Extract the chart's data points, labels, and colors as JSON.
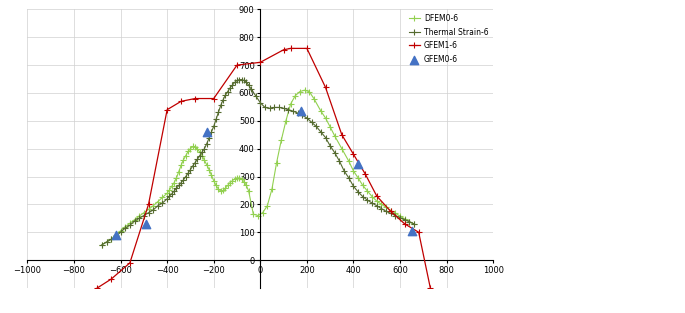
{
  "xlim": [
    -1000,
    1000
  ],
  "ylim": [
    -100,
    900
  ],
  "xticks": [
    -1000,
    -800,
    -600,
    -400,
    -200,
    0,
    200,
    400,
    600,
    800,
    1000
  ],
  "yticks": [
    0,
    100,
    200,
    300,
    400,
    500,
    600,
    700,
    800,
    900
  ],
  "series": {
    "thermal_strain": {
      "label": "Thermal Strain-6",
      "color": "#556b2f",
      "linewidth": 0.8,
      "marker": "+",
      "markersize": 4,
      "x": [
        -680,
        -660,
        -640,
        -620,
        -600,
        -580,
        -560,
        -540,
        -520,
        -500,
        -480,
        -460,
        -440,
        -420,
        -400,
        -390,
        -380,
        -370,
        -360,
        -350,
        -340,
        -330,
        -320,
        -310,
        -300,
        -290,
        -280,
        -270,
        -260,
        -250,
        -240,
        -230,
        -220,
        -210,
        -200,
        -190,
        -180,
        -170,
        -160,
        -150,
        -140,
        -130,
        -120,
        -110,
        -100,
        -90,
        -80,
        -70,
        -60,
        -50,
        -40,
        -20,
        0,
        20,
        40,
        60,
        80,
        100,
        120,
        140,
        160,
        180,
        200,
        220,
        240,
        260,
        280,
        300,
        320,
        340,
        360,
        380,
        400,
        420,
        440,
        460,
        480,
        500,
        520,
        540,
        560,
        580,
        600,
        620,
        640,
        660
      ],
      "y": [
        55,
        65,
        75,
        85,
        100,
        115,
        125,
        140,
        150,
        160,
        170,
        180,
        195,
        205,
        220,
        230,
        238,
        248,
        258,
        268,
        278,
        288,
        300,
        312,
        325,
        338,
        350,
        362,
        375,
        388,
        400,
        418,
        438,
        460,
        480,
        505,
        530,
        555,
        575,
        592,
        605,
        618,
        628,
        638,
        645,
        648,
        648,
        645,
        638,
        628,
        615,
        590,
        565,
        548,
        545,
        548,
        548,
        545,
        540,
        535,
        528,
        520,
        510,
        495,
        480,
        460,
        440,
        410,
        385,
        355,
        320,
        295,
        265,
        245,
        228,
        215,
        205,
        195,
        185,
        175,
        168,
        160,
        152,
        145,
        138,
        130
      ]
    },
    "gfem0": {
      "label": "GFEM0-6",
      "color": "#4472c4",
      "marker": "^",
      "markersize": 6,
      "x": [
        -620,
        -490,
        -230,
        175,
        420,
        650
      ],
      "y": [
        90,
        130,
        460,
        535,
        345,
        105
      ]
    },
    "gfem1": {
      "label": "GFEM1-6",
      "color": "#c00000",
      "linewidth": 0.9,
      "marker": "+",
      "markersize": 4,
      "x": [
        -700,
        -640,
        -560,
        -480,
        -400,
        -340,
        -280,
        -200,
        -100,
        0,
        100,
        130,
        200,
        280,
        350,
        400,
        450,
        500,
        560,
        620,
        680,
        730
      ],
      "y": [
        -100,
        -68,
        -10,
        200,
        540,
        570,
        580,
        580,
        700,
        710,
        755,
        760,
        760,
        620,
        450,
        380,
        310,
        230,
        175,
        130,
        100,
        -100
      ]
    },
    "dfem0": {
      "label": "DFEM0-6",
      "color": "#92d050",
      "linewidth": 0.8,
      "marker": "+",
      "markersize": 4,
      "x": [
        -680,
        -660,
        -640,
        -620,
        -600,
        -580,
        -560,
        -540,
        -520,
        -500,
        -480,
        -460,
        -440,
        -420,
        -400,
        -390,
        -380,
        -370,
        -360,
        -350,
        -340,
        -330,
        -320,
        -310,
        -300,
        -290,
        -280,
        -270,
        -260,
        -250,
        -240,
        -230,
        -220,
        -210,
        -200,
        -190,
        -180,
        -170,
        -160,
        -150,
        -140,
        -130,
        -120,
        -110,
        -100,
        -90,
        -80,
        -70,
        -60,
        -50,
        -30,
        -10,
        10,
        30,
        50,
        70,
        90,
        110,
        130,
        150,
        170,
        190,
        210,
        230,
        260,
        280,
        300,
        320,
        350,
        380,
        400,
        420,
        440,
        460,
        480,
        500,
        520,
        540,
        560,
        580,
        600,
        620,
        640,
        660
      ],
      "y": [
        55,
        65,
        75,
        90,
        105,
        120,
        132,
        145,
        158,
        170,
        182,
        195,
        210,
        225,
        240,
        252,
        265,
        278,
        295,
        318,
        340,
        360,
        375,
        390,
        400,
        408,
        405,
        398,
        388,
        375,
        358,
        342,
        325,
        305,
        285,
        268,
        255,
        248,
        250,
        258,
        268,
        278,
        285,
        292,
        295,
        295,
        290,
        282,
        268,
        248,
        165,
        160,
        170,
        195,
        255,
        350,
        430,
        500,
        560,
        590,
        605,
        610,
        605,
        580,
        535,
        510,
        478,
        445,
        400,
        355,
        320,
        295,
        268,
        248,
        228,
        212,
        200,
        190,
        178,
        168,
        158,
        148,
        138,
        128
      ]
    }
  }
}
